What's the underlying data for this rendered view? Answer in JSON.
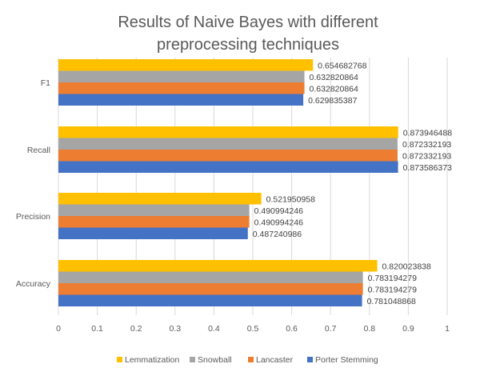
{
  "chart_data": {
    "type": "bar",
    "orientation": "horizontal",
    "title_lines": [
      "Results of Naive Bayes with different",
      "preprocessing techniques"
    ],
    "categories": [
      "F1",
      "Recall",
      "Precision",
      "Accuracy"
    ],
    "series": [
      {
        "name": "Lemmatization",
        "color": "#FFC000",
        "values": [
          0.654682768,
          0.873946488,
          0.521950958,
          0.820023838
        ],
        "labels": [
          "0.654682768",
          "0.873946488",
          "0.521950958",
          "0.820023838"
        ]
      },
      {
        "name": "Snowball",
        "color": "#A5A5A5",
        "values": [
          0.632820864,
          0.872332193,
          0.490994246,
          0.783194279
        ],
        "labels": [
          "0.632820864",
          "0.872332193",
          "0.490994246",
          "0.783194279"
        ]
      },
      {
        "name": "Lancaster",
        "color": "#ED7D31",
        "values": [
          0.632820864,
          0.872332193,
          0.490994246,
          0.783194279
        ],
        "labels": [
          "0.632820864",
          "0.872332193",
          "0.490994246",
          "0.783194279"
        ]
      },
      {
        "name": "Porter Stemming",
        "color": "#4472C4",
        "values": [
          0.629835387,
          0.873586373,
          0.487240986,
          0.781048868
        ],
        "labels": [
          "0.629835387",
          "0.873586373",
          "0.487240986",
          "0.781048868"
        ]
      }
    ],
    "xlim": [
      0,
      1
    ],
    "ticks": [
      "0",
      "0.1",
      "0.2",
      "0.3",
      "0.4",
      "0.5",
      "0.6",
      "0.7",
      "0.8",
      "0.9",
      "1"
    ],
    "grid": true,
    "legend_position": "bottom"
  }
}
